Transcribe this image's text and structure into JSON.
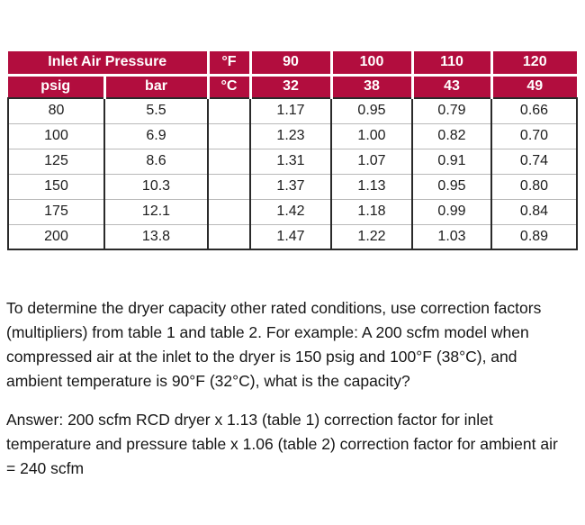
{
  "colors": {
    "header_bg": "#B20D3E",
    "header_text": "#FFFFFF",
    "body_text": "#161616",
    "grid_dark": "#2A2A2A",
    "grid_light": "#B9B9B9"
  },
  "table1": {
    "group_header": "Inlet Air Pressure",
    "fahrenheit_label": "°F",
    "celsius_label": "°C",
    "psig_label": "psig",
    "bar_label": "bar",
    "fahrenheit_values": [
      "90",
      "100",
      "110",
      "120"
    ],
    "celsius_values": [
      "32",
      "38",
      "43",
      "49"
    ],
    "rows": [
      {
        "psig": "80",
        "bar": "5.5",
        "spacer": "",
        "factors": [
          "1.17",
          "0.95",
          "0.79",
          "0.66"
        ]
      },
      {
        "psig": "100",
        "bar": "6.9",
        "spacer": "",
        "factors": [
          "1.23",
          "1.00",
          "0.82",
          "0.70"
        ]
      },
      {
        "psig": "125",
        "bar": "8.6",
        "spacer": "",
        "factors": [
          "1.31",
          "1.07",
          "0.91",
          "0.74"
        ]
      },
      {
        "psig": "150",
        "bar": "10.3",
        "spacer": "",
        "factors": [
          "1.37",
          "1.13",
          "0.95",
          "0.80"
        ]
      },
      {
        "psig": "175",
        "bar": "12.1",
        "spacer": "",
        "factors": [
          "1.42",
          "1.18",
          "0.99",
          "0.84"
        ]
      },
      {
        "psig": "200",
        "bar": "13.8",
        "spacer": "",
        "factors": [
          "1.47",
          "1.22",
          "1.03",
          "0.89"
        ]
      }
    ]
  },
  "text": {
    "explanation": "To determine the dryer capacity other rated conditions, use correction factors\n(multipliers) from table 1 and table 2. For example: A 200 scfm model when\ncompressed air at the inlet to the dryer is 150 psig and 100°F (38°C), and\nambient temperature is 90°F (32°C), what is the capacity?",
    "answer": "Answer: 200 scfm RCD dryer x 1.13 (table 1) correction factor for inlet\ntemperature and pressure table x 1.06 (table 2) correction factor for ambient air\n= 240 scfm"
  }
}
